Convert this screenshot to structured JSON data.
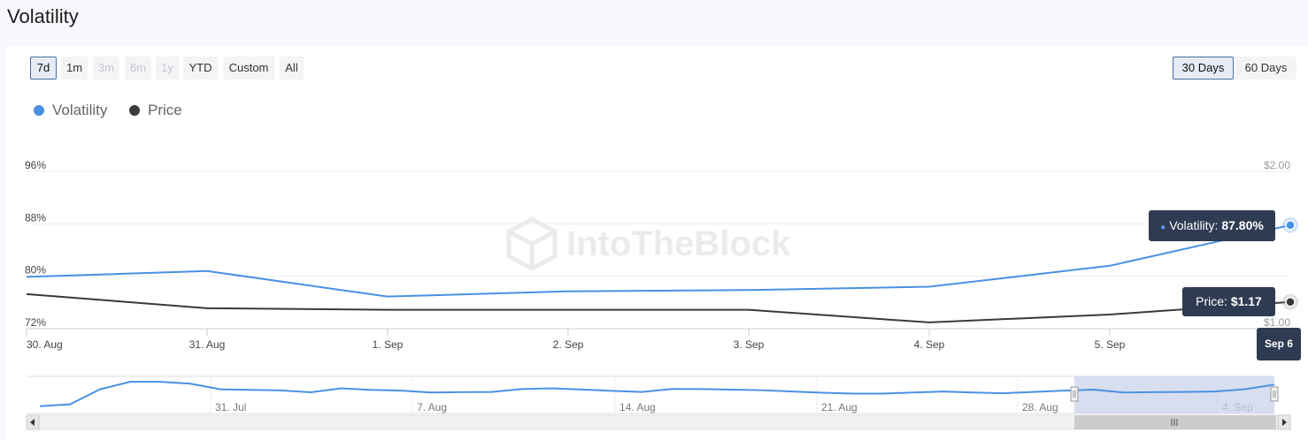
{
  "page": {
    "title": "Volatility"
  },
  "range_buttons": [
    {
      "label": "7d",
      "state": "selected"
    },
    {
      "label": "1m",
      "state": "normal"
    },
    {
      "label": "3m",
      "state": "disabled"
    },
    {
      "label": "6m",
      "state": "disabled"
    },
    {
      "label": "1y",
      "state": "disabled"
    },
    {
      "label": "YTD",
      "state": "normal"
    },
    {
      "label": "Custom",
      "state": "normal"
    },
    {
      "label": "All",
      "state": "normal"
    }
  ],
  "window_buttons": [
    {
      "label": "30 Days",
      "state": "selected"
    },
    {
      "label": "60 Days",
      "state": "normal"
    }
  ],
  "watermark": "IntoTheBlock",
  "tooltip": {
    "volatility_label": "Volatility: ",
    "volatility_value": "87.80%",
    "price_label": "Price: ",
    "price_value": "$1.17",
    "date": "Sep 6"
  },
  "colors": {
    "volatility": "#4a90e2",
    "price": "#3a3a3a",
    "navigator_mask": "#c9d3ea"
  },
  "chart_data": {
    "type": "line",
    "x": [
      "30. Aug",
      "31. Aug",
      "1. Sep",
      "2. Sep",
      "3. Sep",
      "4. Sep",
      "5. Sep",
      "6. Sep"
    ],
    "x_tick_labels": [
      "30. Aug",
      "31. Aug",
      "1. Sep",
      "2. Sep",
      "3. Sep",
      "4. Sep",
      "5. Sep"
    ],
    "series": [
      {
        "name": "Volatility",
        "axis": "left",
        "values": [
          79.9,
          80.8,
          76.9,
          77.7,
          77.9,
          78.4,
          81.6,
          87.8
        ]
      },
      {
        "name": "Price",
        "axis": "right",
        "values": [
          1.22,
          1.13,
          1.12,
          1.12,
          1.12,
          1.04,
          1.09,
          1.17
        ]
      }
    ],
    "y_left": {
      "ticks": [
        "72%",
        "80%",
        "88%",
        "96%"
      ],
      "range": [
        72,
        96
      ]
    },
    "y_right": {
      "ticks": [
        "$1.00",
        "$2.00"
      ],
      "range": [
        1.0,
        2.0
      ]
    },
    "grid": "horizontal",
    "legend": "top-left",
    "navigator": {
      "tick_labels": [
        "31. Jul",
        "7. Aug",
        "14. Aug",
        "21. Aug",
        "28. Aug",
        "4. Sep"
      ],
      "volatility_values": [
        68,
        69,
        77,
        81,
        81,
        80,
        77,
        76.7,
        76.4,
        75.4,
        77.5,
        76.7,
        76.3,
        75.3,
        75.5,
        75.6,
        77.1,
        77.5,
        76.9,
        76.2,
        75.6,
        77.2,
        77.1,
        76.8,
        76.5,
        75.8,
        75.2,
        74.7,
        74.7,
        75.3,
        75.8,
        75.3,
        74.9,
        75.6,
        76.3,
        76.8,
        75.3,
        75.5,
        75.6,
        75.8,
        77,
        79.5
      ]
    }
  }
}
